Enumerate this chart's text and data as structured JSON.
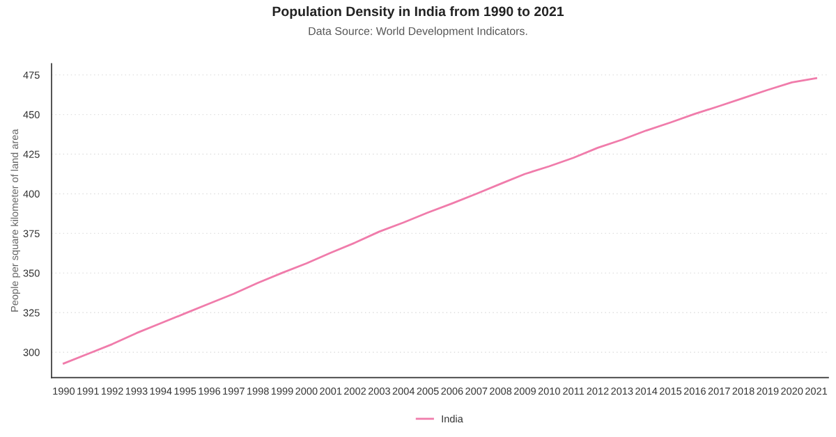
{
  "chart_data": {
    "type": "line",
    "title": "Population Density in India from 1990 to 2021",
    "subtitle": "Data Source: World Development Indicators.",
    "ylabel": "People per square kilometer of land area",
    "categories": [
      "1990",
      "1991",
      "1992",
      "1993",
      "1994",
      "1995",
      "1996",
      "1997",
      "1998",
      "1999",
      "2000",
      "2001",
      "2002",
      "2003",
      "2004",
      "2005",
      "2006",
      "2007",
      "2008",
      "2009",
      "2010",
      "2011",
      "2012",
      "2013",
      "2014",
      "2015",
      "2016",
      "2017",
      "2018",
      "2019",
      "2020",
      "2021"
    ],
    "series": [
      {
        "name": "India",
        "color": "#f07cab",
        "values": [
          292.9,
          299.0,
          305.1,
          312.1,
          318.3,
          324.5,
          330.7,
          336.9,
          343.8,
          350.1,
          356.1,
          362.8,
          369.1,
          376.1,
          381.9,
          388.1,
          393.9,
          400.0,
          406.3,
          412.5,
          417.3,
          422.7,
          429.0,
          434.1,
          439.9,
          445.0,
          450.4,
          455.3,
          460.4,
          465.5,
          470.3,
          472.9
        ]
      }
    ],
    "ylim": [
      284,
      482
    ],
    "yticks": [
      300,
      325,
      350,
      375,
      400,
      425,
      450,
      475
    ],
    "grid": "y",
    "legend": "bottom",
    "marker": "none",
    "line_style": "solid"
  }
}
